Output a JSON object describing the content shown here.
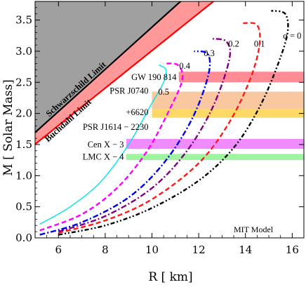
{
  "chart_data": {
    "type": "line",
    "xlabel": "R  [ km]",
    "ylabel": "M  [ Solar  Mass]",
    "xlim": [
      5,
      16.5
    ],
    "ylim": [
      0,
      3.8
    ],
    "x_ticks": [
      "6",
      "8",
      "10",
      "12",
      "14",
      "16"
    ],
    "y_ticks": [
      "0.0",
      "0.5",
      "1.0",
      "1.5",
      "2.0",
      "2.5",
      "3.0",
      "3.5"
    ],
    "model_label": "MIT  Model",
    "series": [
      {
        "name": "α = 0",
        "color": "#000000",
        "dash": "dashdotdot",
        "points": [
          [
            6.0,
            0.05
          ],
          [
            8.0,
            0.2
          ],
          [
            10.0,
            0.48
          ],
          [
            12.0,
            0.92
          ],
          [
            13.5,
            1.45
          ],
          [
            14.6,
            2.1
          ],
          [
            15.4,
            2.8
          ],
          [
            15.8,
            3.3
          ],
          [
            15.7,
            3.6
          ],
          [
            15.1,
            3.65
          ]
        ]
      },
      {
        "name": "0.1",
        "color": "#ff1a1a",
        "dash": "dashed",
        "points": [
          [
            6.0,
            0.08
          ],
          [
            8.0,
            0.28
          ],
          [
            10.0,
            0.62
          ],
          [
            12.0,
            1.2
          ],
          [
            13.3,
            1.85
          ],
          [
            14.2,
            2.55
          ],
          [
            14.6,
            3.1
          ],
          [
            14.5,
            3.42
          ],
          [
            13.9,
            3.45
          ]
        ]
      },
      {
        "name": "0.2",
        "color": "#800080",
        "dash": "dashdot",
        "points": [
          [
            6.0,
            0.1
          ],
          [
            8.0,
            0.35
          ],
          [
            10.0,
            0.8
          ],
          [
            11.5,
            1.4
          ],
          [
            12.6,
            2.1
          ],
          [
            13.3,
            2.85
          ],
          [
            13.2,
            3.15
          ],
          [
            12.6,
            3.2
          ]
        ]
      },
      {
        "name": "0.3",
        "color": "#0000ee",
        "dash": "dashdot",
        "points": [
          [
            5.2,
            0.05
          ],
          [
            7.0,
            0.25
          ],
          [
            9.0,
            0.65
          ],
          [
            10.5,
            1.2
          ],
          [
            11.7,
            1.9
          ],
          [
            12.4,
            2.6
          ],
          [
            12.4,
            2.95
          ],
          [
            11.8,
            3.0
          ]
        ]
      },
      {
        "name": "0.4",
        "color": "#ff00ff",
        "dash": "dashed",
        "points": [
          [
            5.2,
            0.12
          ],
          [
            7.0,
            0.38
          ],
          [
            8.5,
            0.8
          ],
          [
            9.8,
            1.4
          ],
          [
            10.8,
            2.1
          ],
          [
            11.3,
            2.55
          ],
          [
            11.1,
            2.78
          ],
          [
            10.5,
            2.8
          ]
        ]
      },
      {
        "name": "0.5",
        "color": "#00e6e6",
        "dash": "solid",
        "points": [
          [
            5.2,
            0.22
          ],
          [
            6.5,
            0.5
          ],
          [
            7.8,
            0.9
          ],
          [
            9.0,
            1.5
          ],
          [
            9.9,
            2.1
          ],
          [
            10.5,
            2.5
          ],
          [
            10.6,
            2.7
          ],
          [
            10.3,
            2.78
          ]
        ]
      }
    ],
    "series_label_positions": [
      {
        "text": "α = 0",
        "x": 16.0,
        "y": 3.2
      },
      {
        "text": "0.1",
        "x": 14.6,
        "y": 3.07
      },
      {
        "text": "0.2",
        "x": 13.5,
        "y": 3.07
      },
      {
        "text": "0.3",
        "x": 12.45,
        "y": 2.92
      },
      {
        "text": "0.4",
        "x": 11.4,
        "y": 2.72
      },
      {
        "text": "0.5",
        "x": 10.5,
        "y": 2.3
      }
    ],
    "bands": [
      {
        "name": "GW 190 814",
        "x_start": 11.15,
        "y_low": 2.5,
        "y_high": 2.67,
        "color": "#ff8c94"
      },
      {
        "name": "PSR J0740",
        "x_start": 10.0,
        "y_low": 2.07,
        "y_high": 2.35,
        "color": "#fac8a0"
      },
      {
        "name": "PSR J1614 − 2230",
        "x_start": 10.0,
        "y_low": 1.93,
        "y_high": 2.07,
        "color": "#ffd966"
      },
      {
        "name": "Cen X − 3",
        "x_start": 8.9,
        "y_low": 1.43,
        "y_high": 1.59,
        "color": "#f08cff"
      },
      {
        "name": "LMC X − 4",
        "x_start": 8.9,
        "y_low": 1.25,
        "y_high": 1.35,
        "color": "#9ff59f"
      }
    ],
    "band_labels": [
      {
        "text": "GW 190 814",
        "x": 11.05,
        "y": 2.58
      },
      {
        "text": "PSR J0740",
        "x": 9.85,
        "y": 2.36
      },
      {
        "text": "+6620",
        "x": 9.85,
        "y": 2.02
      },
      {
        "text": "PSR J1614 − 2230",
        "x": 9.85,
        "y": 1.78
      },
      {
        "text": "Cen X − 3",
        "x": 8.8,
        "y": 1.5
      },
      {
        "text": "LMC X − 4",
        "x": 8.8,
        "y": 1.3
      }
    ],
    "limits": [
      {
        "name": "Schwarzschild Limit",
        "slope": 0.3386,
        "color": "#000000",
        "label_color": "#ffff00"
      },
      {
        "name": "Buchdahl Limit",
        "slope": 0.3009,
        "color": "#ff0000",
        "label_color": "#000000"
      }
    ],
    "shading": {
      "forbidden": "#a0a0a0",
      "between_limits": "#ff9999"
    }
  }
}
